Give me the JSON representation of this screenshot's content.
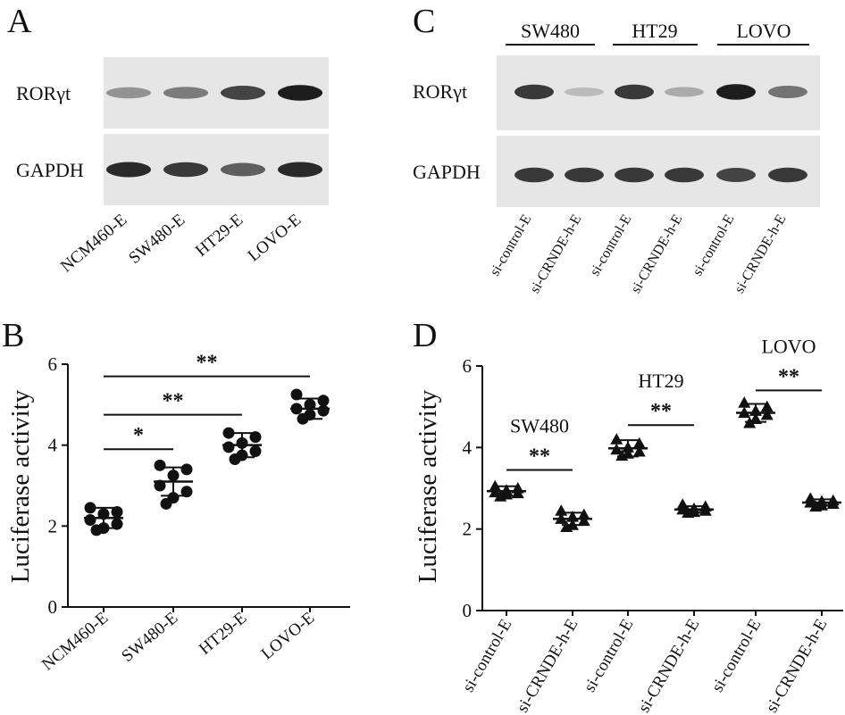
{
  "panel_letters": {
    "a": "A",
    "b": "B",
    "c": "C",
    "d": "D"
  },
  "blots": {
    "A": {
      "rows": [
        "RORγt",
        "GAPDH"
      ],
      "lanes": [
        "NCM460-E",
        "SW480-E",
        "HT29-E",
        "LOVO-E"
      ],
      "band_intensity": {
        "RORγt": [
          0.45,
          0.55,
          0.8,
          0.95
        ],
        "GAPDH": [
          0.9,
          0.85,
          0.7,
          0.9
        ]
      }
    },
    "C": {
      "groups": [
        "SW480",
        "HT29",
        "LOVO"
      ],
      "rows": [
        "RORγt",
        "GAPDH"
      ],
      "lanes": [
        "si-control-E",
        "si-CRNDE-h-E",
        "si-control-E",
        "si-CRNDE-h-E",
        "si-control-E",
        "si-CRNDE-h-E"
      ],
      "band_intensity": {
        "RORγt": [
          0.85,
          0.2,
          0.85,
          0.3,
          0.95,
          0.6
        ],
        "GAPDH": [
          0.85,
          0.85,
          0.85,
          0.85,
          0.8,
          0.85
        ]
      }
    }
  },
  "chart_data": [
    {
      "panel": "B",
      "type": "scatter",
      "ylabel": "Luciferase activity",
      "ylim": [
        0,
        6
      ],
      "yticks": [
        0,
        2,
        4,
        6
      ],
      "categories": [
        "NCM460-E",
        "SW480-E",
        "HT29-E",
        "LOVO-E"
      ],
      "means": [
        2.2,
        3.1,
        4.0,
        4.9
      ],
      "sd": [
        0.25,
        0.35,
        0.3,
        0.25
      ],
      "points": [
        [
          2.45,
          2.35,
          2.3,
          2.15,
          2.05,
          1.95,
          1.9
        ],
        [
          3.5,
          3.4,
          3.25,
          3.0,
          2.85,
          2.7,
          2.55
        ],
        [
          4.3,
          4.2,
          4.05,
          3.95,
          3.85,
          3.75,
          3.65
        ],
        [
          5.25,
          5.1,
          5.0,
          4.9,
          4.85,
          4.75,
          4.65
        ]
      ],
      "significance": [
        {
          "from": 0,
          "to": 1,
          "label": "*",
          "y": 3.9
        },
        {
          "from": 0,
          "to": 2,
          "label": "**",
          "y": 4.75
        },
        {
          "from": 0,
          "to": 3,
          "label": "**",
          "y": 5.7
        }
      ]
    },
    {
      "panel": "D",
      "type": "scatter",
      "ylabel": "Luciferase activity",
      "ylim": [
        0,
        6
      ],
      "yticks": [
        0,
        2,
        4,
        6
      ],
      "categories": [
        "si-control-E",
        "si-CRNDE-h-E",
        "si-control-E",
        "si-CRNDE-h-E",
        "si-control-E",
        "si-CRNDE-h-E"
      ],
      "means": [
        2.93,
        2.25,
        3.98,
        2.48,
        4.85,
        2.65
      ],
      "sd": [
        0.12,
        0.15,
        0.2,
        0.08,
        0.22,
        0.08
      ],
      "points": [
        [
          3.05,
          3.0,
          2.95,
          2.9,
          2.88,
          2.85,
          2.8
        ],
        [
          2.45,
          2.35,
          2.3,
          2.25,
          2.2,
          2.1,
          2.05
        ],
        [
          4.2,
          4.1,
          4.0,
          3.95,
          3.9,
          3.85,
          3.8
        ],
        [
          2.6,
          2.55,
          2.5,
          2.48,
          2.45,
          2.42,
          2.4
        ],
        [
          5.1,
          5.0,
          4.9,
          4.85,
          4.8,
          4.7,
          4.6
        ],
        [
          2.75,
          2.7,
          2.68,
          2.65,
          2.62,
          2.58,
          2.55
        ]
      ],
      "significance": [
        {
          "from": 0,
          "to": 1,
          "label": "**",
          "y": 3.45,
          "group": "SW480"
        },
        {
          "from": 2,
          "to": 3,
          "label": "**",
          "y": 4.55,
          "group": "HT29"
        },
        {
          "from": 4,
          "to": 5,
          "label": "**",
          "y": 5.4,
          "group": "LOVO"
        }
      ]
    }
  ]
}
